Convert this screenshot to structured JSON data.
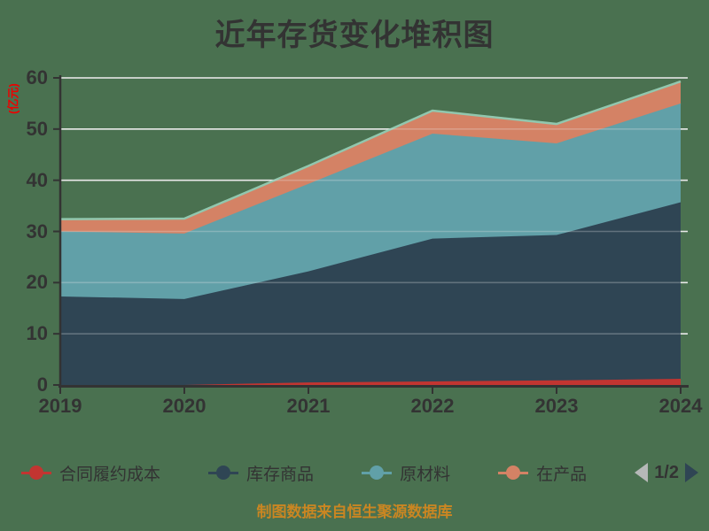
{
  "chart_data": {
    "type": "area",
    "stacked": true,
    "title": "近年存货变化堆积图",
    "ylabel": "(亿元)",
    "categories": [
      "2019",
      "2020",
      "2021",
      "2022",
      "2023",
      "2024"
    ],
    "series": [
      {
        "name": "合同履约成本",
        "color": "#c23531",
        "values": [
          0,
          0,
          0.5,
          0.7,
          0.9,
          1.2
        ]
      },
      {
        "name": "库存商品",
        "color": "#2f4554",
        "values": [
          17.3,
          16.8,
          21.7,
          27.9,
          28.4,
          34.5
        ]
      },
      {
        "name": "原材料",
        "color": "#61a0a8",
        "values": [
          12.7,
          12.8,
          17.1,
          20.5,
          17.9,
          19.3
        ]
      },
      {
        "name": "在产品",
        "color": "#d48265",
        "values": [
          2.4,
          2.9,
          3.5,
          4.5,
          3.8,
          4.3
        ]
      },
      {
        "name": "",
        "color": "#91c7ae",
        "values": [
          0,
          0,
          0,
          0,
          0,
          0
        ],
        "line_only": true
      }
    ],
    "ylim": [
      0,
      60
    ],
    "yticks": [
      0,
      10,
      20,
      30,
      40,
      50,
      60
    ],
    "grid": true,
    "legend_position": "bottom"
  },
  "legend": {
    "pager": {
      "label": "1/2"
    }
  },
  "footer": {
    "text": "制图数据来自恒生聚源数据库"
  },
  "colors": {
    "background": "#4a7150",
    "grid_line": "#e8e8e8",
    "axis": "#333333",
    "title": "#333333",
    "tick_label": "#333333",
    "ylabel": "#ee0000",
    "legend_text": "#333333",
    "pager_prev": "#b5b8b7",
    "pager_next": "#2f4554",
    "pager_text": "#333333",
    "footer": "#ca8622"
  }
}
